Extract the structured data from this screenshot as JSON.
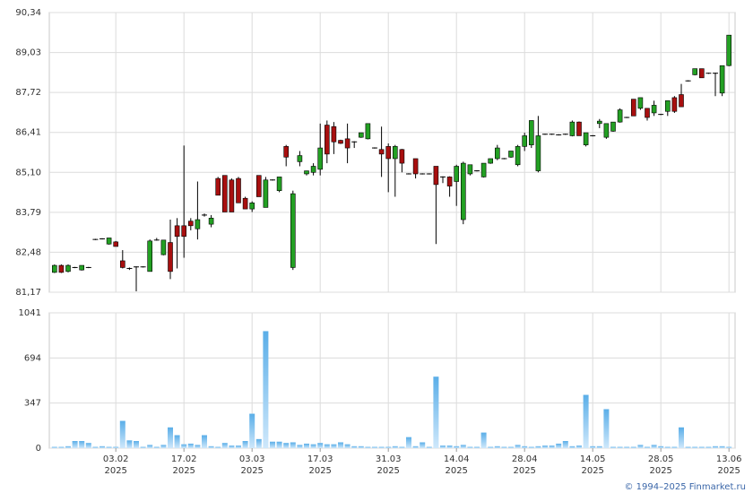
{
  "chart_data": [
    {
      "type": "candlestick",
      "up_color": "#23a023",
      "down_color": "#a80f0f",
      "grid": true,
      "ylim": [
        81.17,
        90.34
      ],
      "yticks": [
        {
          "value": 81.17,
          "label": "81,17"
        },
        {
          "value": 82.48,
          "label": "82,48"
        },
        {
          "value": 83.79,
          "label": "83,79"
        },
        {
          "value": 85.1,
          "label": "85,10"
        },
        {
          "value": 86.41,
          "label": "86,41"
        },
        {
          "value": 87.72,
          "label": "87,72"
        },
        {
          "value": 89.03,
          "label": "89,03"
        },
        {
          "value": 90.34,
          "label": "90,34"
        }
      ],
      "open": [
        81.82,
        82.05,
        81.85,
        81.98,
        81.9,
        81.98,
        82.9,
        82.92,
        82.75,
        82.82,
        82.2,
        81.95,
        82.0,
        82.0,
        81.85,
        82.88,
        82.4,
        82.8,
        83.35,
        83.35,
        83.5,
        83.25,
        83.7,
        83.4,
        84.9,
        85.0,
        84.85,
        84.9,
        84.25,
        83.9,
        85.0,
        83.95,
        84.85,
        84.5,
        85.95,
        81.98,
        85.45,
        85.05,
        85.1,
        85.2,
        86.65,
        86.6,
        86.15,
        86.2,
        86.1,
        86.25,
        86.2,
        85.9,
        85.85,
        85.95,
        85.55,
        85.85,
        85.05,
        85.55,
        85.05,
        85.05,
        85.3,
        84.95,
        84.95,
        84.8,
        83.55,
        85.05,
        85.15,
        84.95,
        85.4,
        85.55,
        85.55,
        85.6,
        85.35,
        85.95,
        86.0,
        85.15,
        86.35,
        86.35,
        86.33,
        86.35,
        86.3,
        86.75,
        86.0,
        86.3,
        86.7,
        86.25,
        86.45,
        86.75,
        86.9,
        87.5,
        87.2,
        87.2,
        87.05,
        87.0,
        87.1,
        87.55,
        87.65,
        88.1,
        88.3,
        88.5,
        88.35,
        88.35,
        87.7,
        88.6
      ],
      "high": [
        82.08,
        82.08,
        82.08,
        82.0,
        82.05,
        82.0,
        82.92,
        82.94,
        82.95,
        82.85,
        82.55,
        81.98,
        82.02,
        82.02,
        82.9,
        82.95,
        82.88,
        83.55,
        83.6,
        85.98,
        83.6,
        84.8,
        83.75,
        83.7,
        84.95,
        85.0,
        84.9,
        84.95,
        84.3,
        84.15,
        85.0,
        84.95,
        84.87,
        84.95,
        86.0,
        84.5,
        85.8,
        85.15,
        85.4,
        86.7,
        86.8,
        86.75,
        86.17,
        86.7,
        86.12,
        86.4,
        86.7,
        85.92,
        86.6,
        86.05,
        86.0,
        85.87,
        85.07,
        85.55,
        85.07,
        85.07,
        85.3,
        84.97,
        84.97,
        85.35,
        85.45,
        85.35,
        85.17,
        85.4,
        85.55,
        86.0,
        85.57,
        85.8,
        86.0,
        86.4,
        86.8,
        86.95,
        86.37,
        86.37,
        86.35,
        86.37,
        86.8,
        86.77,
        86.4,
        86.32,
        86.85,
        86.7,
        86.75,
        87.2,
        86.92,
        87.5,
        87.55,
        87.2,
        87.45,
        87.02,
        87.45,
        87.6,
        88.0,
        88.12,
        88.5,
        88.5,
        88.37,
        88.37,
        88.6,
        89.6
      ],
      "low": [
        81.8,
        81.8,
        81.82,
        81.96,
        81.88,
        81.96,
        82.88,
        82.9,
        82.73,
        82.67,
        81.95,
        81.9,
        81.2,
        81.98,
        81.85,
        82.86,
        82.38,
        81.6,
        81.95,
        82.3,
        83.2,
        82.9,
        83.65,
        83.3,
        84.35,
        83.8,
        83.8,
        84.1,
        83.9,
        83.8,
        84.3,
        83.95,
        84.83,
        84.45,
        85.3,
        81.9,
        85.3,
        85.0,
        85.0,
        85.0,
        85.4,
        85.7,
        86.03,
        85.4,
        85.9,
        86.23,
        86.18,
        85.88,
        84.95,
        84.45,
        84.3,
        85.1,
        85.03,
        84.9,
        85.03,
        85.03,
        82.75,
        84.75,
        84.3,
        84.0,
        83.4,
        85.0,
        85.13,
        84.93,
        85.38,
        85.5,
        85.53,
        85.58,
        85.3,
        85.8,
        85.9,
        85.1,
        86.33,
        86.33,
        86.31,
        86.33,
        86.28,
        86.3,
        85.95,
        86.28,
        86.55,
        86.2,
        86.43,
        86.73,
        86.88,
        86.95,
        87.15,
        86.8,
        86.95,
        86.98,
        86.95,
        87.05,
        87.25,
        88.08,
        88.28,
        88.2,
        88.33,
        87.6,
        87.6,
        88.58
      ],
      "close": [
        82.05,
        81.82,
        82.05,
        81.98,
        82.05,
        81.98,
        82.9,
        82.92,
        82.95,
        82.67,
        81.98,
        81.95,
        82.0,
        82.0,
        82.85,
        82.88,
        82.88,
        81.85,
        83.0,
        83.0,
        83.35,
        83.55,
        83.7,
        83.6,
        84.35,
        83.8,
        83.8,
        84.1,
        83.9,
        84.1,
        84.3,
        84.85,
        84.85,
        84.95,
        85.6,
        84.4,
        85.65,
        85.15,
        85.3,
        85.9,
        85.7,
        86.1,
        86.05,
        85.9,
        86.1,
        86.4,
        86.7,
        85.9,
        85.7,
        85.55,
        85.95,
        85.4,
        85.05,
        85.05,
        85.05,
        85.05,
        84.7,
        84.95,
        84.65,
        85.3,
        85.4,
        85.35,
        85.15,
        85.4,
        85.55,
        85.9,
        85.55,
        85.8,
        85.95,
        86.3,
        86.8,
        86.3,
        86.35,
        86.35,
        86.33,
        86.35,
        86.75,
        86.3,
        86.4,
        86.3,
        86.78,
        86.7,
        86.75,
        87.15,
        86.9,
        86.95,
        87.55,
        86.9,
        87.3,
        87.0,
        87.45,
        87.1,
        87.25,
        88.1,
        88.5,
        88.2,
        88.35,
        88.35,
        88.6,
        89.6
      ]
    },
    {
      "type": "bar",
      "color_top": "#5aaee8",
      "color_bottom": "#cfe8fb",
      "grid": true,
      "ylim": [
        0,
        1041
      ],
      "yticks": [
        0,
        347,
        694,
        1041
      ],
      "values": [
        10,
        10,
        15,
        55,
        55,
        40,
        10,
        15,
        10,
        10,
        210,
        60,
        55,
        10,
        25,
        10,
        25,
        160,
        100,
        30,
        35,
        25,
        100,
        15,
        10,
        40,
        20,
        20,
        55,
        265,
        70,
        900,
        50,
        50,
        40,
        45,
        25,
        35,
        30,
        40,
        30,
        30,
        45,
        30,
        15,
        15,
        10,
        10,
        10,
        10,
        15,
        10,
        85,
        15,
        45,
        10,
        550,
        20,
        20,
        15,
        25,
        10,
        10,
        120,
        10,
        15,
        10,
        10,
        25,
        15,
        10,
        15,
        20,
        20,
        35,
        55,
        15,
        20,
        410,
        15,
        15,
        300,
        10,
        10,
        10,
        10,
        25,
        10,
        25,
        15,
        10,
        10,
        160,
        10,
        10,
        10,
        10,
        15,
        15,
        10
      ],
      "categories": [
        null,
        null,
        null,
        null,
        null,
        null,
        null,
        null,
        null,
        "03.02",
        null,
        null,
        null,
        null,
        null,
        null,
        null,
        null,
        null,
        "17.02",
        null,
        null,
        null,
        null,
        null,
        null,
        null,
        null,
        null,
        "03.03",
        null,
        null,
        null,
        null,
        null,
        null,
        null,
        null,
        null,
        "17.03",
        null,
        null,
        null,
        null,
        null,
        null,
        null,
        null,
        null,
        "31.03",
        null,
        null,
        null,
        null,
        null,
        null,
        null,
        null,
        null,
        "14.04",
        null,
        null,
        null,
        null,
        null,
        null,
        null,
        null,
        null,
        "28.04",
        null,
        null,
        null,
        null,
        null,
        null,
        null,
        null,
        null,
        "14.05",
        null,
        null,
        null,
        null,
        null,
        null,
        null,
        null,
        null,
        "28.05",
        null,
        null,
        null,
        null,
        null,
        null,
        null,
        null,
        null,
        "13.06"
      ],
      "category_years": [
        null,
        null,
        null,
        null,
        null,
        null,
        null,
        null,
        null,
        "2025",
        null,
        null,
        null,
        null,
        null,
        null,
        null,
        null,
        null,
        "2025",
        null,
        null,
        null,
        null,
        null,
        null,
        null,
        null,
        null,
        "2025",
        null,
        null,
        null,
        null,
        null,
        null,
        null,
        null,
        null,
        "2025",
        null,
        null,
        null,
        null,
        null,
        null,
        null,
        null,
        null,
        "2025",
        null,
        null,
        null,
        null,
        null,
        null,
        null,
        null,
        null,
        "2025",
        null,
        null,
        null,
        null,
        null,
        null,
        null,
        null,
        null,
        "2025",
        null,
        null,
        null,
        null,
        null,
        null,
        null,
        null,
        null,
        "2025",
        null,
        null,
        null,
        null,
        null,
        null,
        null,
        null,
        null,
        "2025",
        null,
        null,
        null,
        null,
        null,
        null,
        null,
        null,
        null,
        "2025"
      ]
    }
  ],
  "footer": "© 1994–2025 Finmarket.ru"
}
